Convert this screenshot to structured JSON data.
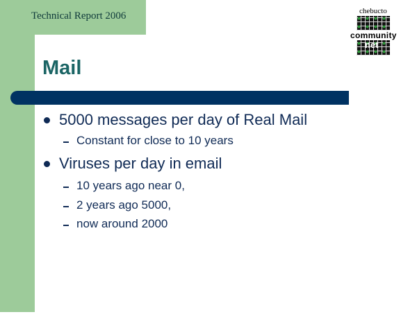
{
  "header": {
    "text": "Technical Report 2006"
  },
  "logo": {
    "line1": "chebucto",
    "line2": "community",
    "line3": "net"
  },
  "slide": {
    "title": "Mail",
    "bullets": [
      {
        "text": "5000 messages per day of Real Mail",
        "sub": [
          "Constant for close to 10 years"
        ]
      },
      {
        "text": "Viruses per day in email",
        "sub": [
          "10 years ago near 0,",
          "2 years ago 5000,",
          "now around 2000"
        ]
      }
    ]
  },
  "colors": {
    "accent_green": "#9dcb9a",
    "bar_navy": "#003262",
    "title_teal": "#1b6565",
    "text_navy": "#0f2a55"
  }
}
